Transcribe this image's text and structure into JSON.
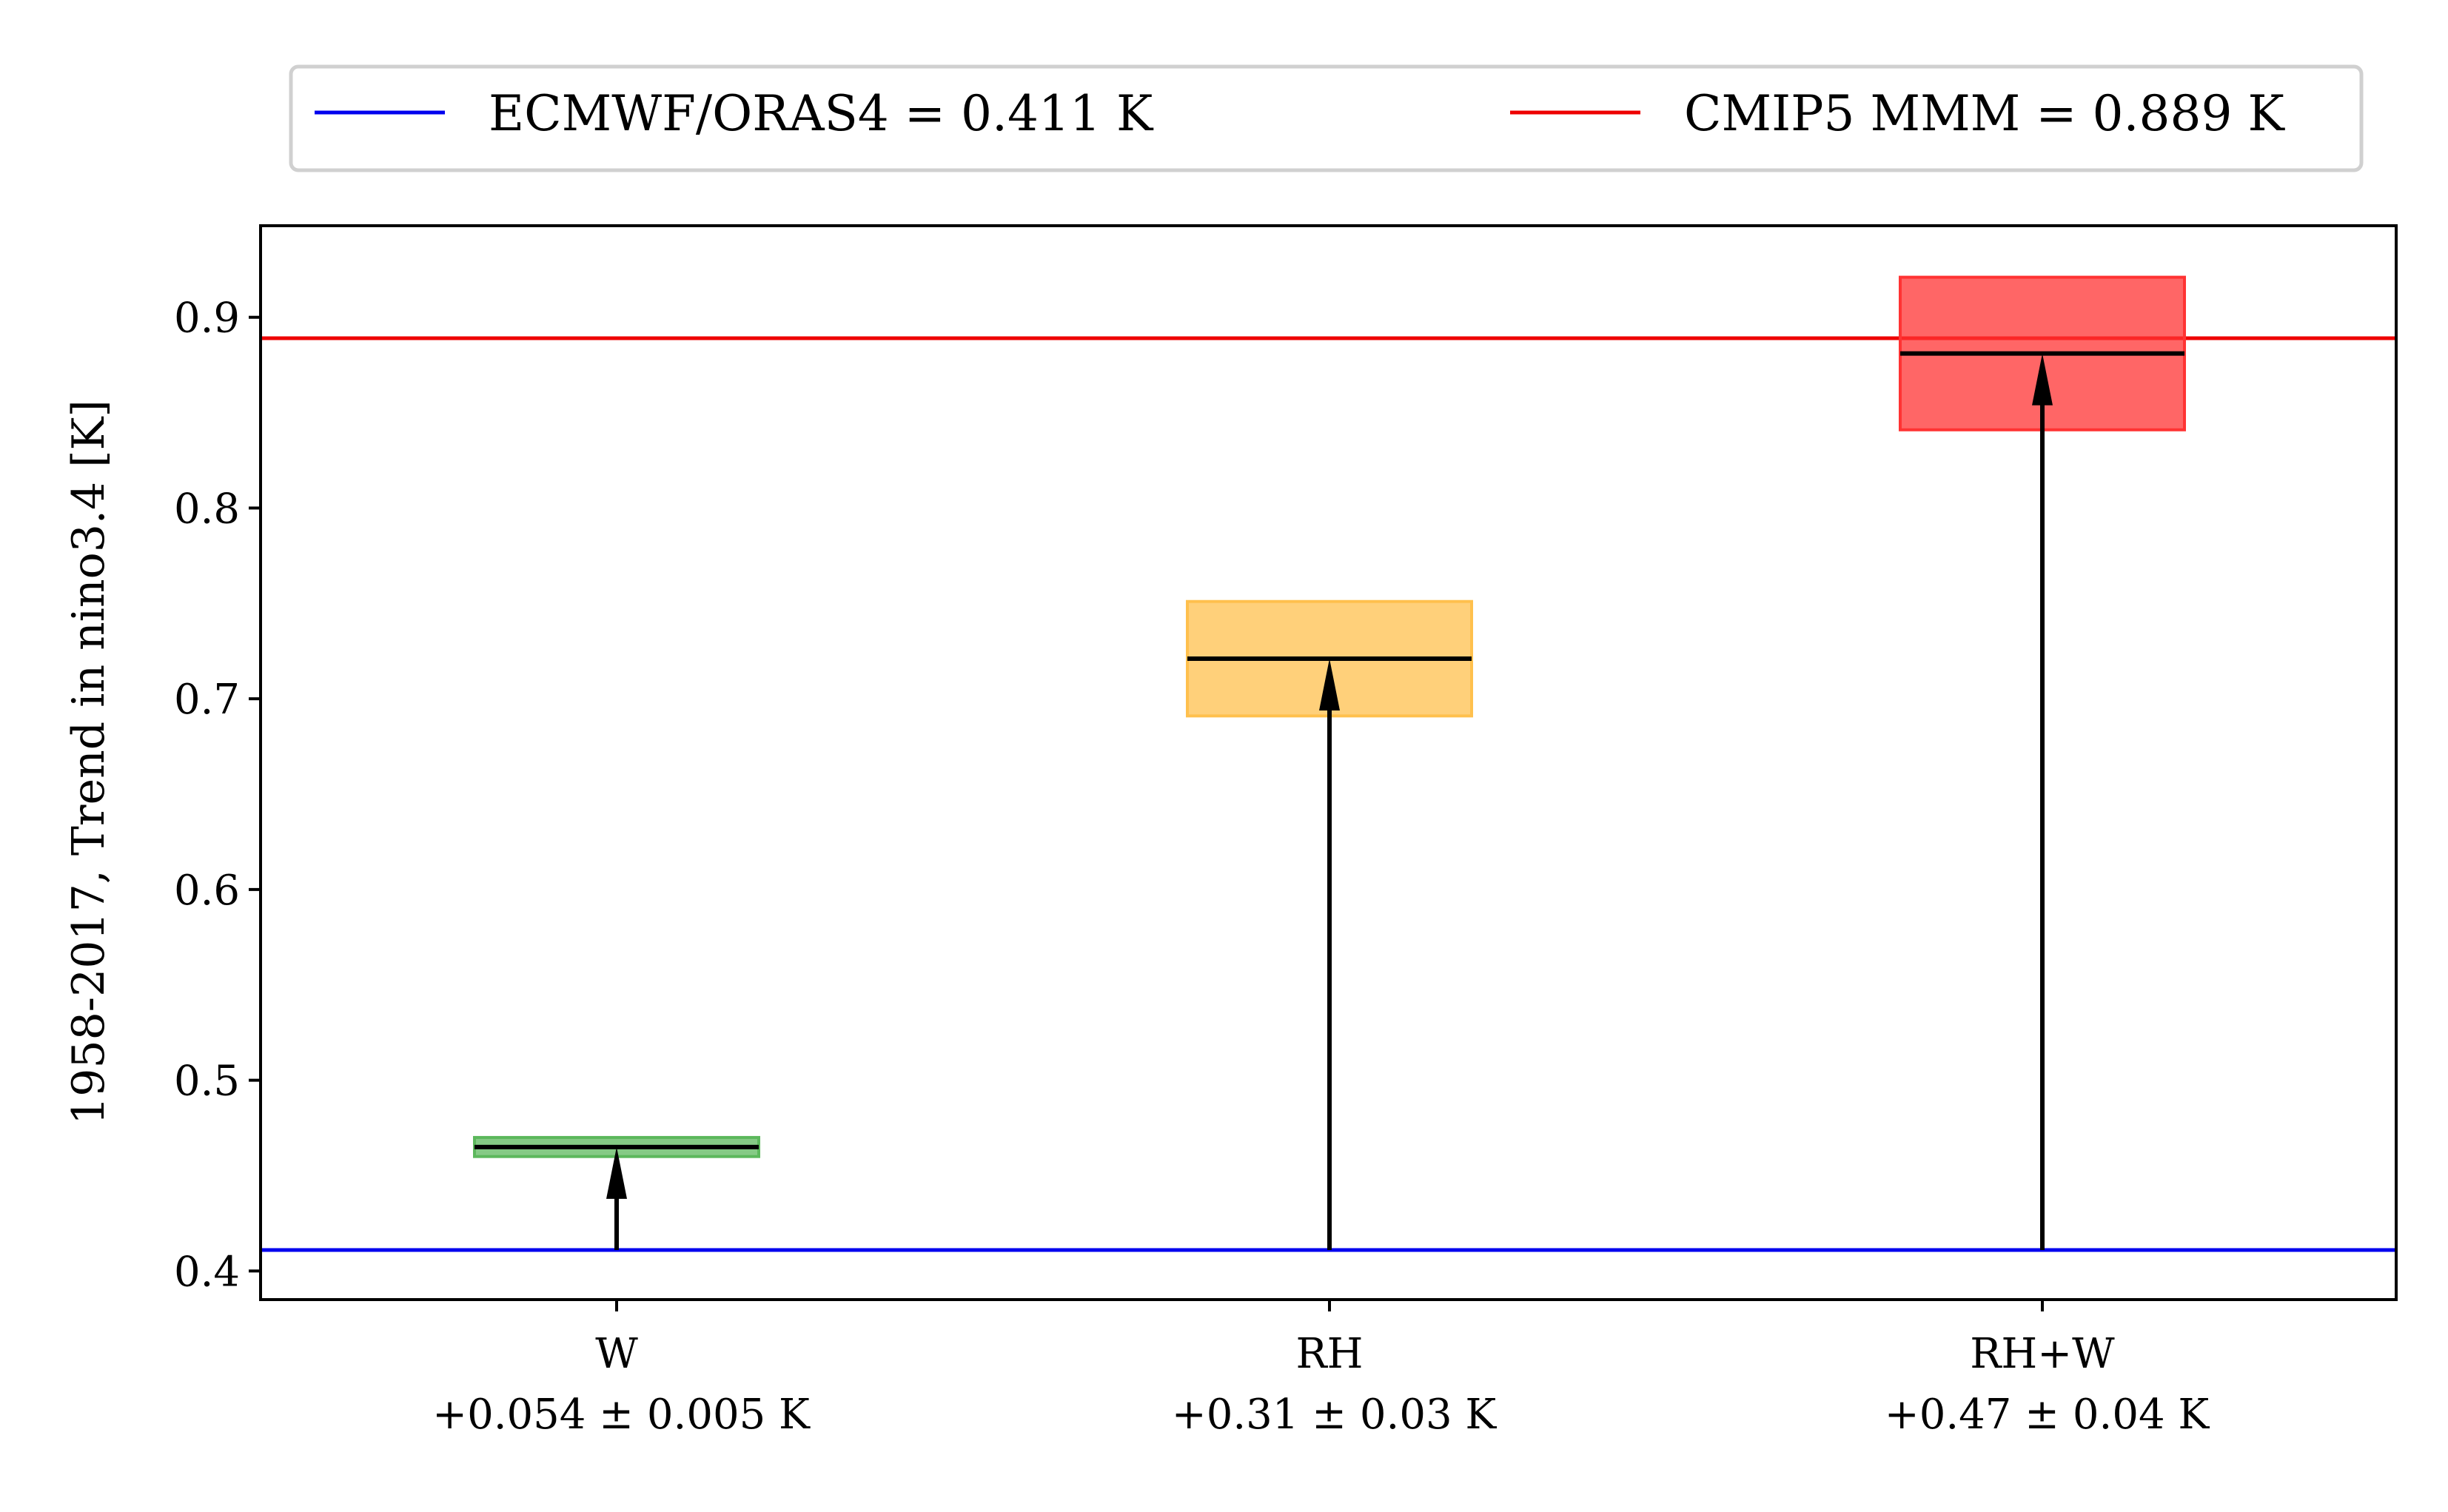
{
  "chart_data": {
    "type": "bar",
    "title": "",
    "xlabel": "",
    "ylabel": "1958-2017, Trend in nino3.4 [K]",
    "ylim": [
      0.385,
      0.948
    ],
    "yticks": [
      0.4,
      0.5,
      0.6,
      0.7,
      0.8,
      0.9
    ],
    "ytick_labels": [
      "0.4",
      "0.5",
      "0.6",
      "0.7",
      "0.8",
      "0.9"
    ],
    "grid": false,
    "legend_position": "top, above plot",
    "reference_lines": [
      {
        "label": "ECMWF/ORAS4 = 0.411 K",
        "value": 0.411,
        "color": "#0000ee"
      },
      {
        "label": "CMIP5 MMM = 0.889 K",
        "value": 0.889,
        "color": "#ee0000"
      }
    ],
    "categories": [
      {
        "label": "W",
        "sublabel": "+0.054 ± 0.005 K",
        "value": 0.465,
        "low": 0.46,
        "high": 0.47,
        "color": "#5cb85c"
      },
      {
        "label": "RH",
        "sublabel": "+0.31 ± 0.03 K",
        "value": 0.721,
        "low": 0.691,
        "high": 0.751,
        "color": "#ffc04d"
      },
      {
        "label": "RH+W",
        "sublabel": "+0.47 ± 0.04 K",
        "value": 0.881,
        "low": 0.841,
        "high": 0.921,
        "color": "#ff3333"
      }
    ],
    "arrow_base": 0.411
  }
}
